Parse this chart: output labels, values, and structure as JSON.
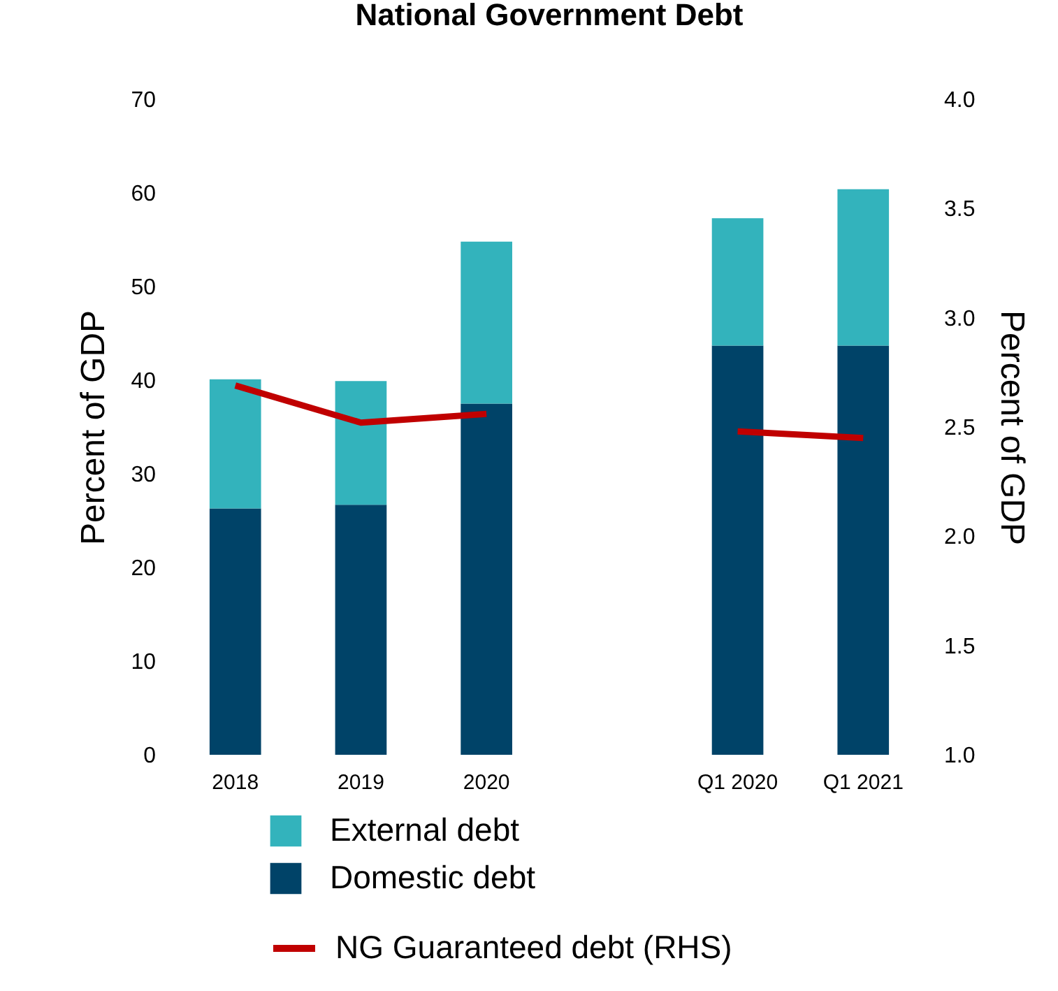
{
  "chart_data": {
    "type": "bar",
    "title": "National Government Debt",
    "ylabel": "Percent of GDP",
    "y2label": "Percent of GDP",
    "categories": [
      "2018",
      "2019",
      "2020",
      null,
      "Q1 2020",
      "Q1 2021"
    ],
    "stacked": true,
    "series": [
      {
        "name": "Domestic debt",
        "color": "#004368",
        "values": [
          26.3,
          26.7,
          37.5,
          null,
          43.7,
          43.7
        ]
      },
      {
        "name": "External debt",
        "color": "#33b3bc",
        "values": [
          13.8,
          13.2,
          17.3,
          null,
          13.6,
          16.7
        ]
      },
      {
        "name": "NG Guaranteed debt (RHS)",
        "type": "line",
        "axis": "y2",
        "color": "#c00000",
        "values": [
          2.69,
          2.52,
          2.56,
          null,
          2.48,
          2.45
        ]
      }
    ],
    "ylim": [
      0,
      70
    ],
    "yticks": [
      0,
      10,
      20,
      30,
      40,
      50,
      60,
      70
    ],
    "y2lim": [
      1.0,
      4.0
    ],
    "y2ticks": [
      {
        "value": 1,
        "label": "1.0"
      },
      {
        "value": 1.5,
        "label": "1.5"
      },
      {
        "value": 2,
        "label": "2.0"
      },
      {
        "value": 2.5,
        "label": "2.5"
      },
      {
        "value": 3,
        "label": "3.0"
      },
      {
        "value": 3.5,
        "label": "3.5"
      },
      {
        "value": 4,
        "label": "4.0"
      }
    ],
    "grid": false,
    "legend": "bottom"
  }
}
